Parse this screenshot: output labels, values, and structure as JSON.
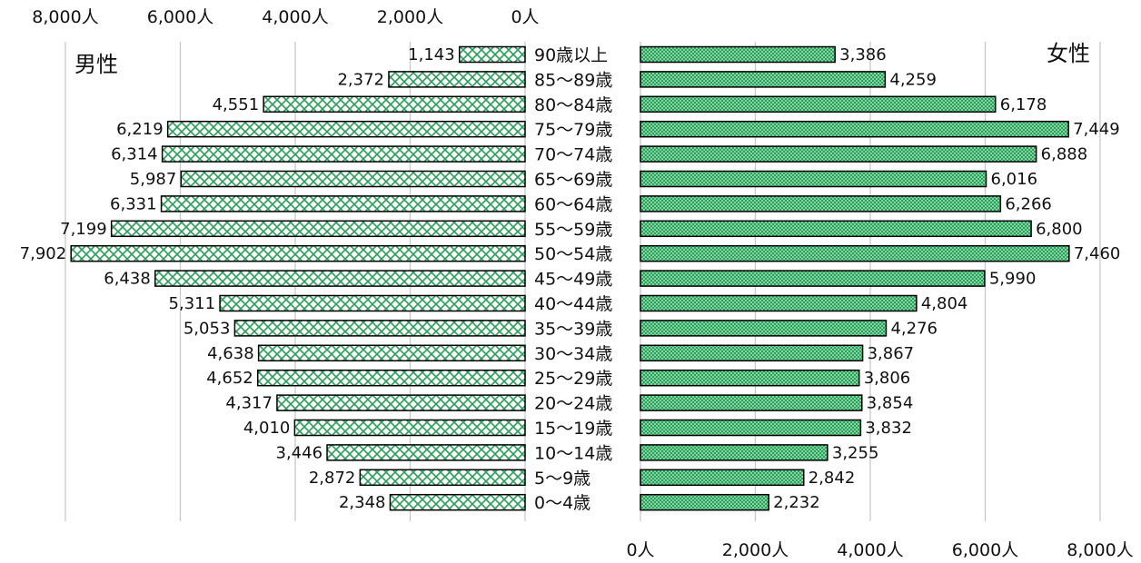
{
  "chart_data": {
    "type": "bar",
    "orientation": "horizontal",
    "layout": "population-pyramid",
    "categories": [
      "90歳以上",
      "85～89歳",
      "80～84歳",
      "75～79歳",
      "70～74歳",
      "65～69歳",
      "60～64歳",
      "55～59歳",
      "50～54歳",
      "45～49歳",
      "40～44歳",
      "35～39歳",
      "30～34歳",
      "25～29歳",
      "20～24歳",
      "15～19歳",
      "10～14歳",
      "5～9歳",
      "0～4歳"
    ],
    "series": [
      {
        "name": "男性",
        "side": "left",
        "values": [
          1143,
          2372,
          4551,
          6219,
          6314,
          5987,
          6331,
          7199,
          7902,
          6438,
          5311,
          5053,
          4638,
          4652,
          4317,
          4010,
          3446,
          2872,
          2348
        ],
        "value_labels": [
          "1,143",
          "2,372",
          "4,551",
          "6,219",
          "6,314",
          "5,987",
          "6,331",
          "7,199",
          "7,902",
          "6,438",
          "5,311",
          "5,053",
          "4,638",
          "4,652",
          "4,317",
          "4,010",
          "3,446",
          "2,872",
          "2,348"
        ],
        "fill": "#ffffff",
        "pattern_color": "#2e9e5b"
      },
      {
        "name": "女性",
        "side": "right",
        "values": [
          3386,
          4259,
          6178,
          7449,
          6888,
          6016,
          6266,
          6800,
          7460,
          5990,
          4804,
          4276,
          3867,
          3806,
          3854,
          3832,
          3255,
          2842,
          2232
        ],
        "value_labels": [
          "3,386",
          "4,259",
          "6,178",
          "7,449",
          "6,888",
          "6,016",
          "6,266",
          "6,800",
          "7,460",
          "5,990",
          "4,804",
          "4,276",
          "3,867",
          "3,806",
          "3,854",
          "3,832",
          "3,255",
          "2,842",
          "2,232"
        ],
        "fill": "#7fd6a0",
        "pattern_color": "#1f8a4c"
      }
    ],
    "left_axis_ticks": [
      "8,000人",
      "6,000人",
      "4,000人",
      "2,000人",
      "0人"
    ],
    "right_axis_ticks": [
      "0人",
      "2,000人",
      "4,000人",
      "6,000人",
      "8,000人"
    ],
    "tick_values": [
      8000,
      6000,
      4000,
      2000,
      0
    ],
    "xlim": [
      0,
      8000
    ],
    "grid": true,
    "grid_color": "#c8c8c8",
    "bar_outline": "#000000"
  }
}
